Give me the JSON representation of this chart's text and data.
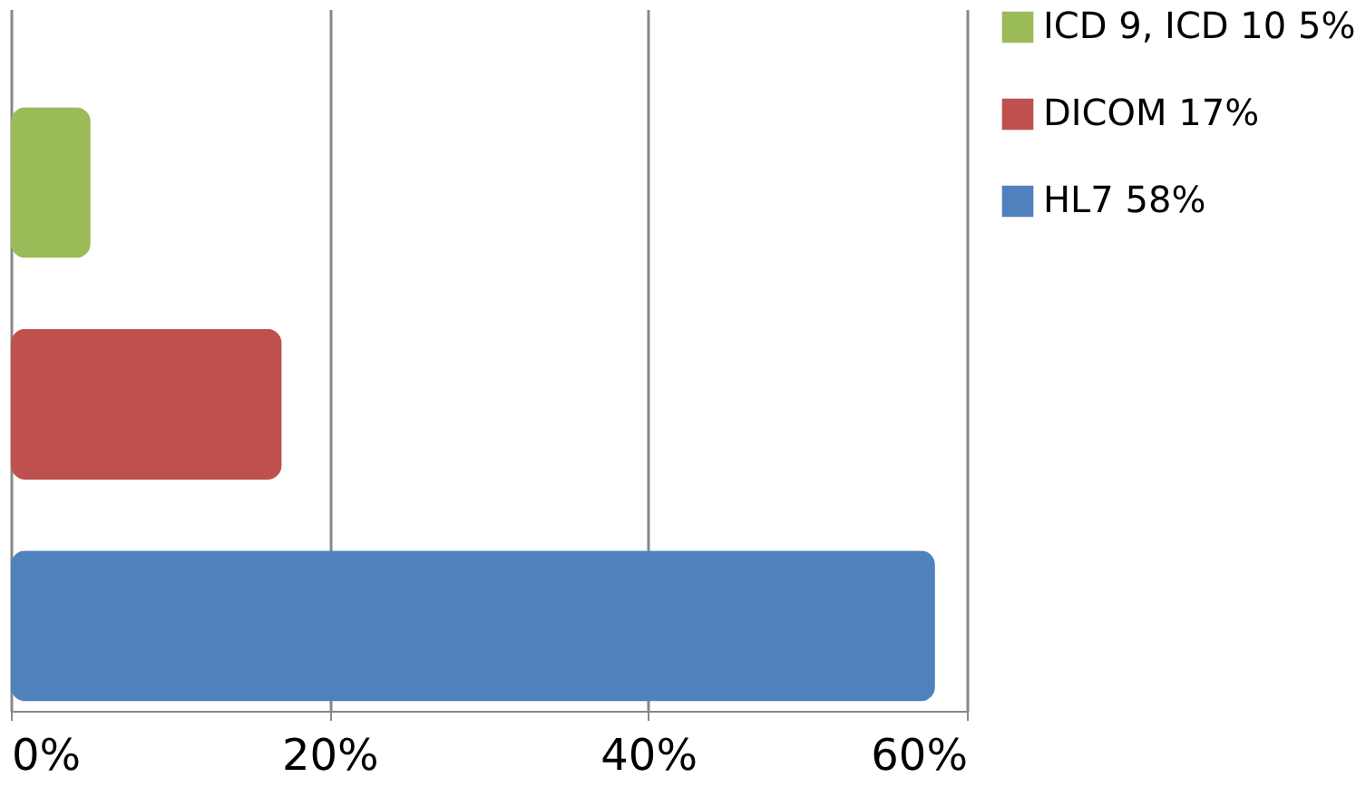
{
  "chart_data": {
    "type": "bar",
    "orientation": "horizontal",
    "categories": [
      null
    ],
    "series": [
      {
        "name": "ICD 9, ICD 10 5%",
        "color": "#9bbb59",
        "values": [
          5
        ]
      },
      {
        "name": "DICOM 17%",
        "color": "#c0504d",
        "values": [
          17
        ]
      },
      {
        "name": "HL7 58%",
        "color": "#4f81bd",
        "values": [
          58
        ]
      }
    ],
    "xlim": [
      0,
      60
    ],
    "xticks": [
      {
        "value": 0,
        "label": "0%"
      },
      {
        "value": 20,
        "label": "20%"
      },
      {
        "value": 40,
        "label": "40%"
      },
      {
        "value": 60,
        "label": "60%"
      }
    ],
    "grid": "x",
    "legend": "right",
    "tick_labels": "x"
  }
}
